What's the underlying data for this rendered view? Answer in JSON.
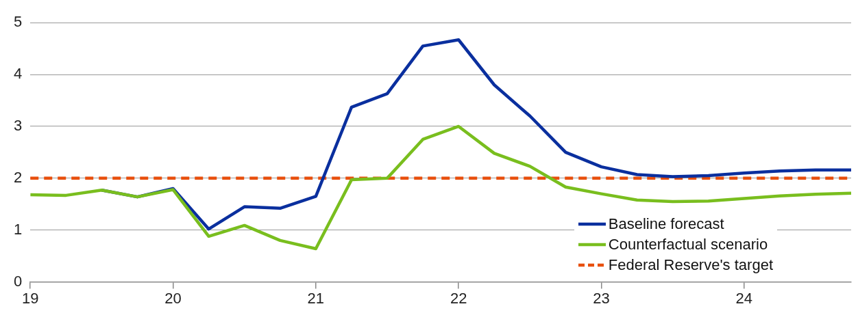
{
  "chart_data": {
    "type": "line",
    "x": [
      19,
      19.25,
      19.5,
      19.75,
      20,
      20.25,
      20.5,
      20.75,
      21,
      21.25,
      21.5,
      21.75,
      22,
      22.25,
      22.5,
      22.75,
      23,
      23.25,
      23.5,
      23.75,
      24,
      24.25,
      24.5,
      24.75
    ],
    "series": [
      {
        "name": "Baseline forecast",
        "color": "#0a2f9e",
        "values": [
          null,
          null,
          1.77,
          1.64,
          1.8,
          1.02,
          1.45,
          1.42,
          1.65,
          3.37,
          3.63,
          4.55,
          4.67,
          3.8,
          3.2,
          2.5,
          2.22,
          2.07,
          2.03,
          2.05,
          2.1,
          2.14,
          2.16,
          2.16
        ]
      },
      {
        "name": "Counterfactual scenario",
        "color": "#79be1e",
        "values": [
          1.68,
          1.67,
          1.77,
          1.64,
          1.78,
          0.88,
          1.09,
          0.8,
          0.64,
          1.97,
          2.0,
          2.75,
          3.0,
          2.48,
          2.23,
          1.83,
          1.7,
          1.58,
          1.55,
          1.56,
          1.61,
          1.66,
          1.69,
          1.71
        ]
      }
    ],
    "ref_lines": [
      {
        "axis": "y",
        "value": 2,
        "label": "Federal Reserve's target",
        "color": "#e8500e",
        "line_style": "dashed"
      }
    ],
    "xlim": [
      19,
      24.75
    ],
    "xticks": [
      19,
      20,
      21,
      22,
      23,
      24
    ],
    "ylim": [
      0,
      5
    ],
    "yticks": [
      0,
      1,
      2,
      3,
      4,
      5
    ],
    "grid": "y",
    "legend": "bottom right",
    "marker": "none",
    "line_style": "solid"
  }
}
